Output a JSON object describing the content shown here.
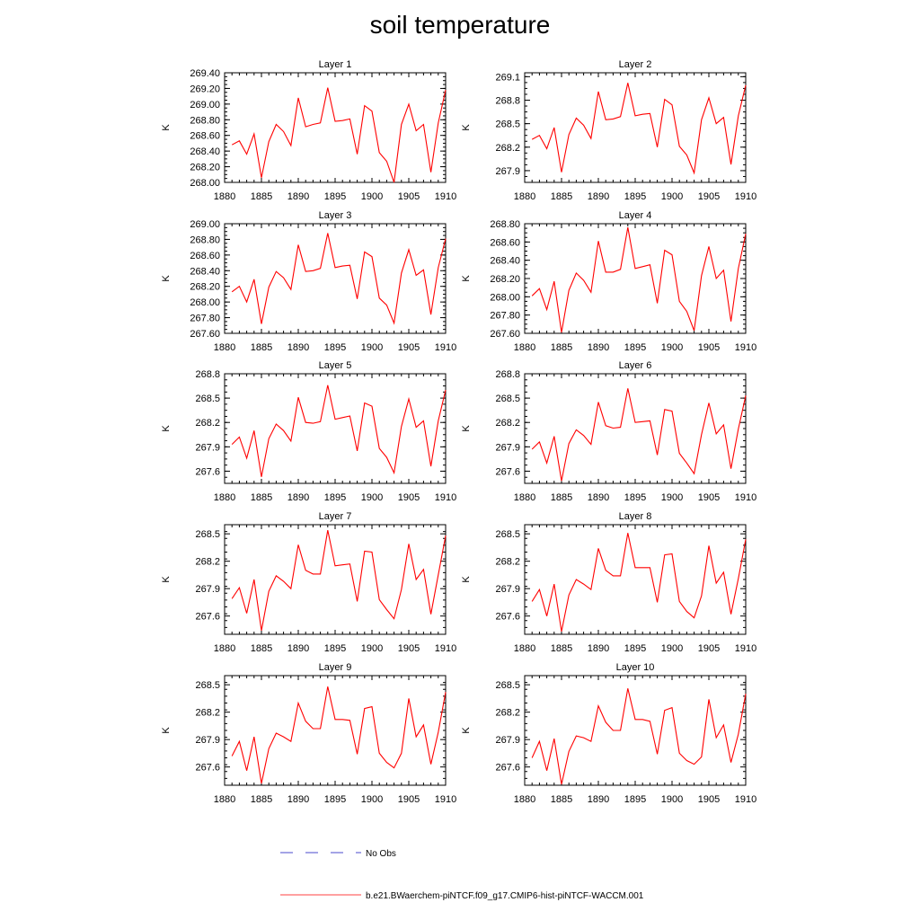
{
  "title": "soil temperature",
  "legend": [
    {
      "label": "No Obs",
      "color": "#4a4acc",
      "style": "dashed"
    },
    {
      "label": "b.e21.BWaerchem-piNTCF.f09_g17.CMIP6-hist-piNTCF-WACCM.001",
      "color": "#ff4040",
      "style": "solid"
    }
  ],
  "series_color": "#ff0000",
  "chart_data": [
    {
      "type": "line",
      "title": "Layer 1",
      "xlabel": "",
      "ylabel": "K",
      "x": [
        1881,
        1882,
        1883,
        1884,
        1885,
        1886,
        1887,
        1888,
        1889,
        1890,
        1891,
        1892,
        1893,
        1894,
        1895,
        1896,
        1897,
        1898,
        1899,
        1900,
        1901,
        1902,
        1903,
        1904,
        1905,
        1906,
        1907,
        1908,
        1909,
        1910
      ],
      "xlim": [
        1880,
        1910
      ],
      "xticks": [
        1880,
        1885,
        1890,
        1895,
        1900,
        1905,
        1910
      ],
      "ylim": [
        268.0,
        269.4
      ],
      "yticks": [
        "268.00",
        "268.20",
        "268.40",
        "268.60",
        "268.80",
        "269.00",
        "269.20",
        "269.40"
      ],
      "values": [
        268.48,
        268.53,
        268.36,
        268.62,
        268.06,
        268.52,
        268.74,
        268.65,
        268.47,
        269.08,
        268.71,
        268.74,
        268.76,
        269.21,
        268.78,
        268.79,
        268.81,
        268.36,
        268.98,
        268.91,
        268.38,
        268.27,
        268.0,
        268.74,
        269.0,
        268.66,
        268.74,
        268.13,
        268.76,
        269.18
      ]
    },
    {
      "type": "line",
      "title": "Layer 2",
      "xlabel": "",
      "ylabel": "K",
      "x": [
        1881,
        1882,
        1883,
        1884,
        1885,
        1886,
        1887,
        1888,
        1889,
        1890,
        1891,
        1892,
        1893,
        1894,
        1895,
        1896,
        1897,
        1898,
        1899,
        1900,
        1901,
        1902,
        1903,
        1904,
        1905,
        1906,
        1907,
        1908,
        1909,
        1910
      ],
      "xlim": [
        1880,
        1910
      ],
      "xticks": [
        1880,
        1885,
        1890,
        1895,
        1900,
        1905,
        1910
      ],
      "ylim": [
        267.75,
        269.15
      ],
      "yticks": [
        "267.9",
        "268.2",
        "268.5",
        "268.8",
        "269.1"
      ],
      "values": [
        268.3,
        268.35,
        268.18,
        268.45,
        267.88,
        268.36,
        268.57,
        268.48,
        268.31,
        268.91,
        268.55,
        268.56,
        268.59,
        269.02,
        268.6,
        268.62,
        268.63,
        268.2,
        268.81,
        268.74,
        268.21,
        268.1,
        267.87,
        268.55,
        268.83,
        268.5,
        268.58,
        267.98,
        268.6,
        268.99
      ]
    },
    {
      "type": "line",
      "title": "Layer 3",
      "xlabel": "",
      "ylabel": "K",
      "x": [
        1881,
        1882,
        1883,
        1884,
        1885,
        1886,
        1887,
        1888,
        1889,
        1890,
        1891,
        1892,
        1893,
        1894,
        1895,
        1896,
        1897,
        1898,
        1899,
        1900,
        1901,
        1902,
        1903,
        1904,
        1905,
        1906,
        1907,
        1908,
        1909,
        1910
      ],
      "xlim": [
        1880,
        1910
      ],
      "xticks": [
        1880,
        1885,
        1890,
        1895,
        1900,
        1905,
        1910
      ],
      "ylim": [
        267.6,
        269.0
      ],
      "yticks": [
        "267.60",
        "267.80",
        "268.00",
        "268.20",
        "268.40",
        "268.60",
        "268.80",
        "269.00"
      ],
      "values": [
        268.13,
        268.2,
        268.0,
        268.29,
        267.72,
        268.19,
        268.39,
        268.31,
        268.16,
        268.73,
        268.39,
        268.4,
        268.43,
        268.88,
        268.44,
        268.46,
        268.47,
        268.04,
        268.64,
        268.58,
        268.05,
        267.96,
        267.73,
        268.37,
        268.67,
        268.34,
        268.41,
        267.84,
        268.44,
        268.81
      ]
    },
    {
      "type": "line",
      "title": "Layer 4",
      "xlabel": "",
      "ylabel": "K",
      "x": [
        1881,
        1882,
        1883,
        1884,
        1885,
        1886,
        1887,
        1888,
        1889,
        1890,
        1891,
        1892,
        1893,
        1894,
        1895,
        1896,
        1897,
        1898,
        1899,
        1900,
        1901,
        1902,
        1903,
        1904,
        1905,
        1906,
        1907,
        1908,
        1909,
        1910
      ],
      "xlim": [
        1880,
        1910
      ],
      "xticks": [
        1880,
        1885,
        1890,
        1895,
        1900,
        1905,
        1910
      ],
      "ylim": [
        267.6,
        268.8
      ],
      "yticks": [
        "267.60",
        "267.80",
        "268.00",
        "268.20",
        "268.40",
        "268.60",
        "268.80"
      ],
      "values": [
        268.01,
        268.09,
        267.86,
        268.17,
        267.61,
        268.07,
        268.26,
        268.18,
        268.05,
        268.61,
        268.27,
        268.27,
        268.3,
        268.76,
        268.31,
        268.33,
        268.35,
        267.93,
        268.51,
        268.46,
        267.95,
        267.84,
        267.63,
        268.23,
        268.55,
        268.2,
        268.29,
        267.73,
        268.31,
        268.69
      ]
    },
    {
      "type": "line",
      "title": "Layer 5",
      "xlabel": "",
      "ylabel": "K",
      "x": [
        1881,
        1882,
        1883,
        1884,
        1885,
        1886,
        1887,
        1888,
        1889,
        1890,
        1891,
        1892,
        1893,
        1894,
        1895,
        1896,
        1897,
        1898,
        1899,
        1900,
        1901,
        1902,
        1903,
        1904,
        1905,
        1906,
        1907,
        1908,
        1909,
        1910
      ],
      "xlim": [
        1880,
        1910
      ],
      "xticks": [
        1880,
        1885,
        1890,
        1895,
        1900,
        1905,
        1910
      ],
      "ylim": [
        267.45,
        268.8
      ],
      "yticks": [
        "267.6",
        "267.9",
        "268.2",
        "268.5",
        "268.8"
      ],
      "values": [
        267.93,
        268.02,
        267.76,
        268.1,
        267.53,
        268.0,
        268.18,
        268.1,
        267.97,
        268.51,
        268.2,
        268.19,
        268.21,
        268.66,
        268.24,
        268.26,
        268.28,
        267.85,
        268.44,
        268.4,
        267.88,
        267.77,
        267.58,
        268.15,
        268.49,
        268.14,
        268.22,
        267.66,
        268.22,
        268.6
      ]
    },
    {
      "type": "line",
      "title": "Layer 6",
      "xlabel": "",
      "ylabel": "K",
      "x": [
        1881,
        1882,
        1883,
        1884,
        1885,
        1886,
        1887,
        1888,
        1889,
        1890,
        1891,
        1892,
        1893,
        1894,
        1895,
        1896,
        1897,
        1898,
        1899,
        1900,
        1901,
        1902,
        1903,
        1904,
        1905,
        1906,
        1907,
        1908,
        1909,
        1910
      ],
      "xlim": [
        1880,
        1910
      ],
      "xticks": [
        1880,
        1885,
        1890,
        1895,
        1900,
        1905,
        1910
      ],
      "ylim": [
        267.45,
        268.8
      ],
      "yticks": [
        "267.6",
        "267.9",
        "268.2",
        "268.5",
        "268.8"
      ],
      "values": [
        267.87,
        267.96,
        267.7,
        268.03,
        267.48,
        267.94,
        268.11,
        268.04,
        267.93,
        268.45,
        268.16,
        268.13,
        268.14,
        268.62,
        268.2,
        268.21,
        268.22,
        267.8,
        268.36,
        268.34,
        267.82,
        267.7,
        267.57,
        268.05,
        268.44,
        268.06,
        268.17,
        267.63,
        268.12,
        268.53
      ]
    },
    {
      "type": "line",
      "title": "Layer 7",
      "xlabel": "",
      "ylabel": "K",
      "x": [
        1881,
        1882,
        1883,
        1884,
        1885,
        1886,
        1887,
        1888,
        1889,
        1890,
        1891,
        1892,
        1893,
        1894,
        1895,
        1896,
        1897,
        1898,
        1899,
        1900,
        1901,
        1902,
        1903,
        1904,
        1905,
        1906,
        1907,
        1908,
        1909,
        1910
      ],
      "xlim": [
        1880,
        1910
      ],
      "xticks": [
        1880,
        1885,
        1890,
        1895,
        1900,
        1905,
        1910
      ],
      "ylim": [
        267.4,
        268.6
      ],
      "yticks": [
        "267.6",
        "267.9",
        "268.2",
        "268.5"
      ],
      "values": [
        267.79,
        267.91,
        267.63,
        268.0,
        267.44,
        267.87,
        268.04,
        267.98,
        267.9,
        268.38,
        268.1,
        268.06,
        268.06,
        268.54,
        268.15,
        268.16,
        268.17,
        267.76,
        268.31,
        268.3,
        267.78,
        267.67,
        267.57,
        267.89,
        268.39,
        268.0,
        268.11,
        267.62,
        268.05,
        268.48
      ]
    },
    {
      "type": "line",
      "title": "Layer 8",
      "xlabel": "",
      "ylabel": "K",
      "x": [
        1881,
        1882,
        1883,
        1884,
        1885,
        1886,
        1887,
        1888,
        1889,
        1890,
        1891,
        1892,
        1893,
        1894,
        1895,
        1896,
        1897,
        1898,
        1899,
        1900,
        1901,
        1902,
        1903,
        1904,
        1905,
        1906,
        1907,
        1908,
        1909,
        1910
      ],
      "xlim": [
        1880,
        1910
      ],
      "xticks": [
        1880,
        1885,
        1890,
        1895,
        1900,
        1905,
        1910
      ],
      "ylim": [
        267.4,
        268.6
      ],
      "yticks": [
        "267.6",
        "267.9",
        "268.2",
        "268.5"
      ],
      "values": [
        267.76,
        267.89,
        267.6,
        267.95,
        267.43,
        267.83,
        268.0,
        267.95,
        267.89,
        268.34,
        268.1,
        268.04,
        268.04,
        268.51,
        268.13,
        268.13,
        268.13,
        267.75,
        268.27,
        268.28,
        267.76,
        267.65,
        267.58,
        267.82,
        268.37,
        267.96,
        268.08,
        267.62,
        268.01,
        268.44
      ]
    },
    {
      "type": "line",
      "title": "Layer 9",
      "xlabel": "",
      "ylabel": "K",
      "x": [
        1881,
        1882,
        1883,
        1884,
        1885,
        1886,
        1887,
        1888,
        1889,
        1890,
        1891,
        1892,
        1893,
        1894,
        1895,
        1896,
        1897,
        1898,
        1899,
        1900,
        1901,
        1902,
        1903,
        1904,
        1905,
        1906,
        1907,
        1908,
        1909,
        1910
      ],
      "xlim": [
        1880,
        1910
      ],
      "xticks": [
        1880,
        1885,
        1890,
        1895,
        1900,
        1905,
        1910
      ],
      "ylim": [
        267.4,
        268.6
      ],
      "yticks": [
        "267.6",
        "267.9",
        "268.2",
        "268.5"
      ],
      "values": [
        267.72,
        267.88,
        267.56,
        267.93,
        267.42,
        267.8,
        267.97,
        267.93,
        267.88,
        268.3,
        268.1,
        268.02,
        268.02,
        268.48,
        268.12,
        268.12,
        268.11,
        267.74,
        268.24,
        268.26,
        267.75,
        267.65,
        267.59,
        267.75,
        268.35,
        267.93,
        268.06,
        267.63,
        267.98,
        268.42
      ]
    },
    {
      "type": "line",
      "title": "Layer 10",
      "xlabel": "",
      "ylabel": "K",
      "x": [
        1881,
        1882,
        1883,
        1884,
        1885,
        1886,
        1887,
        1888,
        1889,
        1890,
        1891,
        1892,
        1893,
        1894,
        1895,
        1896,
        1897,
        1898,
        1899,
        1900,
        1901,
        1902,
        1903,
        1904,
        1905,
        1906,
        1907,
        1908,
        1909,
        1910
      ],
      "xlim": [
        1880,
        1910
      ],
      "xticks": [
        1880,
        1885,
        1890,
        1895,
        1900,
        1905,
        1910
      ],
      "ylim": [
        267.4,
        268.6
      ],
      "yticks": [
        "267.6",
        "267.9",
        "268.2",
        "268.5"
      ],
      "values": [
        267.7,
        267.88,
        267.56,
        267.91,
        267.41,
        267.77,
        267.94,
        267.92,
        267.88,
        268.27,
        268.09,
        268.0,
        268.0,
        268.46,
        268.12,
        268.12,
        268.1,
        267.74,
        268.22,
        268.25,
        267.75,
        267.67,
        267.63,
        267.71,
        268.34,
        267.92,
        268.06,
        267.65,
        267.96,
        268.4
      ]
    }
  ]
}
